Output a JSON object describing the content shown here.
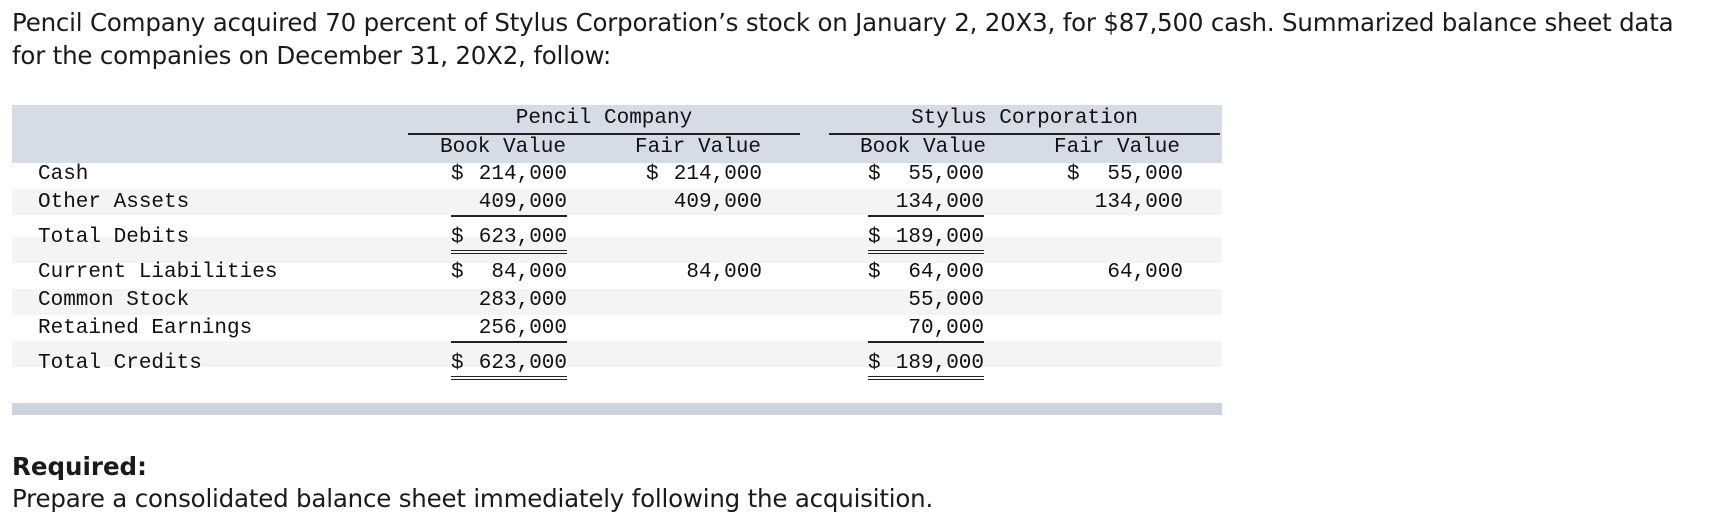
{
  "intro": {
    "text": "Pencil Company acquired 70 percent of Stylus Corporation’s stock on January 2, 20X3, for $87,500 cash. Summarized balance sheet data for the companies on December 31, 20X2, follow:"
  },
  "table": {
    "groups": {
      "pencil": "Pencil Company",
      "stylus": "Stylus Corporation"
    },
    "columns": {
      "book_value": "Book Value",
      "fair_value": "Fair Value"
    },
    "rows": {
      "cash": {
        "label": "Cash",
        "pencil_book": {
          "dollar": "$",
          "amount": "214,000"
        },
        "pencil_fair": {
          "dollar": "$",
          "amount": "214,000"
        },
        "stylus_book": {
          "dollar": "$",
          "amount": " 55,000"
        },
        "stylus_fair": {
          "dollar": "$",
          "amount": " 55,000"
        }
      },
      "other_assets": {
        "label": "Other Assets",
        "pencil_book": "409,000",
        "pencil_fair": "409,000",
        "stylus_book": "134,000",
        "stylus_fair": "134,000"
      },
      "total_debits": {
        "label": "Total Debits",
        "pencil_book": {
          "dollar": "$",
          "amount": "623,000"
        },
        "stylus_book": {
          "dollar": "$",
          "amount": "189,000"
        }
      },
      "current_liabilities": {
        "label": "Current Liabilities",
        "pencil_book": {
          "dollar": "$",
          "amount": " 84,000"
        },
        "pencil_fair": "84,000",
        "stylus_book": {
          "dollar": "$",
          "amount": " 64,000"
        },
        "stylus_fair": "64,000"
      },
      "common_stock": {
        "label": "Common Stock",
        "pencil_book": "283,000",
        "stylus_book": "55,000"
      },
      "retained_earnings": {
        "label": "Retained Earnings",
        "pencil_book": "256,000",
        "stylus_book": "70,000"
      },
      "total_credits": {
        "label": "Total Credits",
        "pencil_book": {
          "dollar": "$",
          "amount": "623,000"
        },
        "stylus_book": {
          "dollar": "$",
          "amount": "189,000"
        }
      }
    }
  },
  "required": {
    "heading": "Required:",
    "text": "Prepare a consolidated balance sheet immediately following the acquisition."
  }
}
